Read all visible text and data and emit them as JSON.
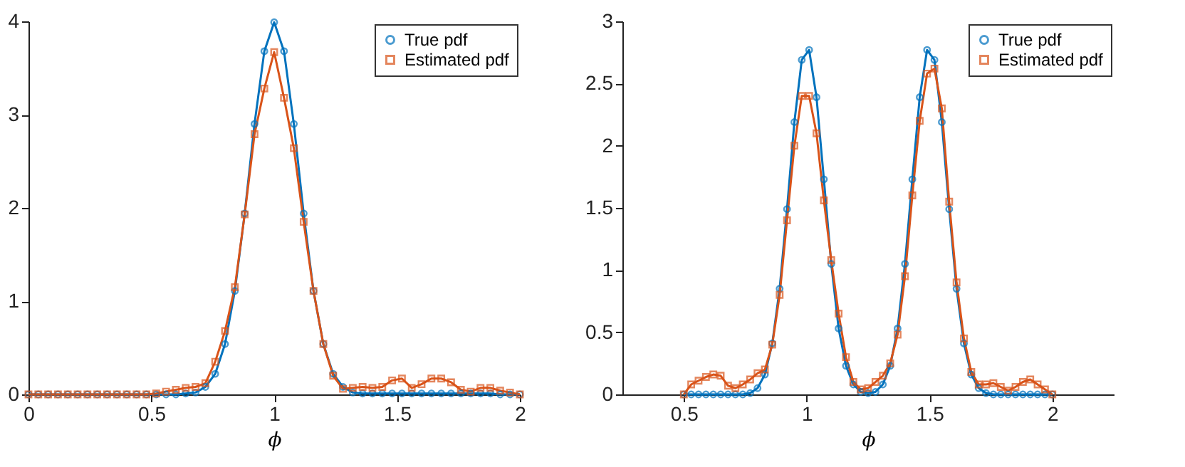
{
  "chart_data": [
    {
      "type": "line",
      "xlabel": "ϕ",
      "xlim": [
        0,
        2
      ],
      "xticks": [
        0,
        0.5,
        1,
        1.5,
        2
      ],
      "ylim": [
        0,
        4
      ],
      "yticks": [
        0,
        1,
        2,
        3,
        4
      ],
      "legend": "top right",
      "x": [
        0,
        0.04,
        0.08,
        0.12,
        0.16,
        0.2,
        0.24,
        0.28,
        0.32,
        0.36,
        0.4,
        0.44,
        0.48,
        0.52,
        0.56,
        0.6,
        0.64,
        0.68,
        0.72,
        0.76,
        0.8,
        0.84,
        0.88,
        0.92,
        0.96,
        1.0,
        1.04,
        1.08,
        1.12,
        1.16,
        1.2,
        1.24,
        1.28,
        1.32,
        1.36,
        1.4,
        1.44,
        1.48,
        1.52,
        1.56,
        1.6,
        1.64,
        1.68,
        1.72,
        1.76,
        1.8,
        1.84,
        1.88,
        1.92,
        1.96,
        2.0
      ],
      "series": [
        {
          "name": "True pdf",
          "color": "#0072bd",
          "marker": "circle",
          "values": [
            0,
            0,
            0,
            0,
            0,
            0,
            0,
            0,
            0,
            0,
            0,
            0,
            0,
            0,
            0,
            0,
            0.01,
            0.02,
            0.08,
            0.22,
            0.54,
            1.11,
            1.94,
            2.9,
            3.68,
            3.99,
            3.68,
            2.9,
            1.94,
            1.11,
            0.54,
            0.22,
            0.08,
            0.02,
            0.01,
            0.01,
            0.01,
            0.01,
            0.01,
            0.01,
            0.01,
            0.01,
            0.01,
            0.01,
            0.01,
            0.01,
            0.01,
            0.01,
            0,
            0,
            0
          ]
        },
        {
          "name": "Estimated pdf",
          "color": "#d95319",
          "marker": "square",
          "values": [
            0,
            0,
            0,
            0,
            0,
            0,
            0,
            0,
            0,
            0,
            0,
            0,
            0,
            0.01,
            0.03,
            0.05,
            0.07,
            0.08,
            0.12,
            0.35,
            0.68,
            1.15,
            1.93,
            2.79,
            3.28,
            3.67,
            3.18,
            2.64,
            1.85,
            1.11,
            0.54,
            0.2,
            0.06,
            0.07,
            0.08,
            0.07,
            0.08,
            0.15,
            0.17,
            0.07,
            0.11,
            0.17,
            0.17,
            0.13,
            0.05,
            0.03,
            0.07,
            0.07,
            0.04,
            0.02,
            0
          ]
        }
      ]
    },
    {
      "type": "line",
      "xlabel": "ϕ",
      "xlim": [
        0.25,
        2.25
      ],
      "xticks": [
        0.5,
        1,
        1.5,
        2
      ],
      "ylim": [
        0,
        3
      ],
      "yticks": [
        0,
        0.5,
        1,
        1.5,
        2,
        2.5,
        3
      ],
      "legend": "top right",
      "x": [
        0.5,
        0.53,
        0.56,
        0.59,
        0.62,
        0.65,
        0.68,
        0.71,
        0.74,
        0.77,
        0.8,
        0.83,
        0.86,
        0.89,
        0.92,
        0.95,
        0.98,
        1.01,
        1.04,
        1.07,
        1.1,
        1.13,
        1.16,
        1.19,
        1.22,
        1.25,
        1.28,
        1.31,
        1.34,
        1.37,
        1.4,
        1.43,
        1.46,
        1.49,
        1.52,
        1.55,
        1.58,
        1.61,
        1.64,
        1.67,
        1.7,
        1.73,
        1.76,
        1.79,
        1.82,
        1.85,
        1.88,
        1.91,
        1.94,
        1.97,
        2.0
      ],
      "series": [
        {
          "name": "True pdf",
          "color": "#0072bd",
          "marker": "circle",
          "values": [
            0,
            0,
            0,
            0,
            0,
            0,
            0,
            0,
            0,
            0.01,
            0.05,
            0.16,
            0.41,
            0.85,
            1.49,
            2.19,
            2.69,
            2.77,
            2.39,
            1.73,
            1.05,
            0.53,
            0.23,
            0.08,
            0.02,
            0.01,
            0.02,
            0.08,
            0.23,
            0.53,
            1.05,
            1.73,
            2.39,
            2.77,
            2.69,
            2.19,
            1.49,
            0.85,
            0.41,
            0.16,
            0.05,
            0.01,
            0,
            0,
            0,
            0,
            0,
            0,
            0,
            0,
            0
          ]
        },
        {
          "name": "Estimated pdf",
          "color": "#d95319",
          "marker": "square",
          "values": [
            0,
            0.08,
            0.11,
            0.14,
            0.16,
            0.15,
            0.07,
            0.05,
            0.08,
            0.12,
            0.17,
            0.2,
            0.4,
            0.8,
            1.4,
            2.0,
            2.4,
            2.4,
            2.1,
            1.56,
            1.08,
            0.65,
            0.3,
            0.1,
            0.04,
            0.05,
            0.1,
            0.15,
            0.25,
            0.48,
            0.95,
            1.6,
            2.2,
            2.58,
            2.62,
            2.3,
            1.55,
            0.9,
            0.45,
            0.18,
            0.08,
            0.08,
            0.09,
            0.06,
            0.03,
            0.06,
            0.1,
            0.12,
            0.08,
            0.04,
            0
          ]
        }
      ]
    }
  ]
}
